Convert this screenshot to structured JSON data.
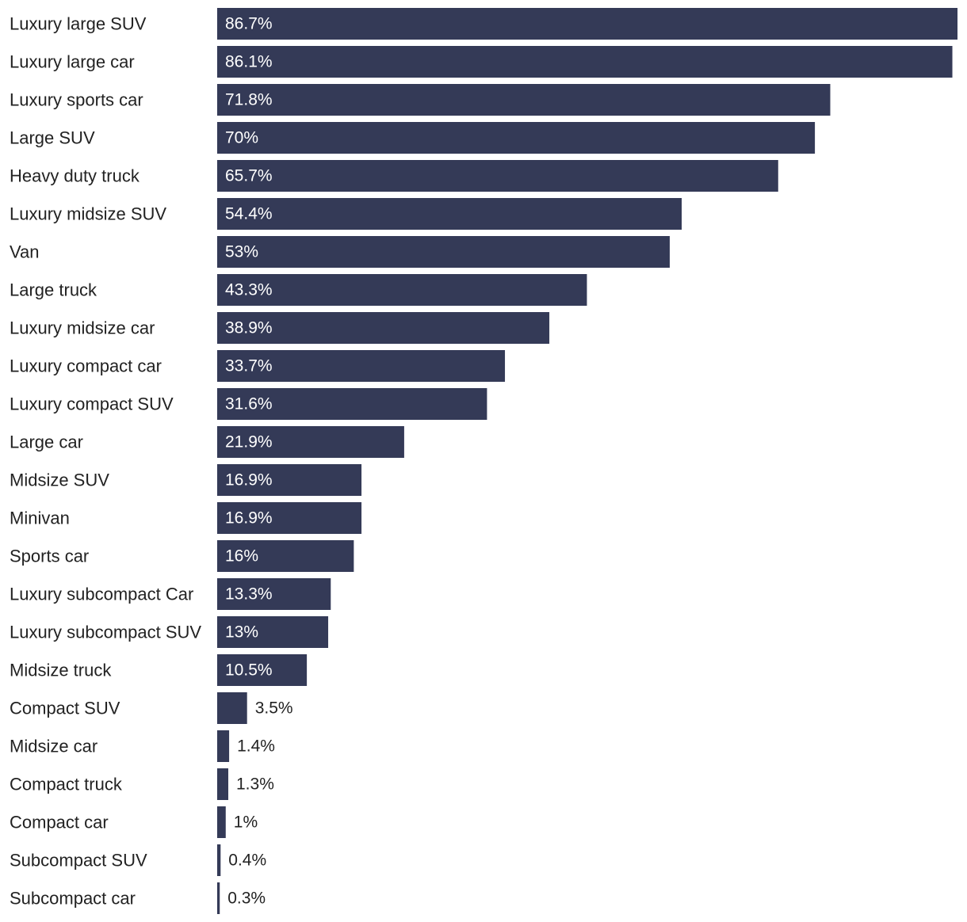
{
  "chart_data": {
    "type": "bar",
    "orientation": "horizontal",
    "title": "",
    "xlabel": "",
    "ylabel": "",
    "xlim": [
      0,
      86.7
    ],
    "grid": false,
    "legend": "none",
    "value_suffix": "%",
    "categories": [
      "Luxury large SUV",
      "Luxury large car",
      "Luxury sports car",
      "Large SUV",
      "Heavy duty truck",
      "Luxury midsize SUV",
      "Van",
      "Large truck",
      "Luxury midsize car",
      "Luxury compact car",
      "Luxury compact SUV",
      "Large car",
      "Midsize SUV",
      "Minivan",
      "Sports car",
      "Luxury subcompact Car",
      "Luxury subcompact SUV",
      "Midsize truck",
      "Compact SUV",
      "Midsize car",
      "Compact truck",
      "Compact car",
      "Subcompact SUV",
      "Subcompact car"
    ],
    "values": [
      86.7,
      86.1,
      71.8,
      70,
      65.7,
      54.4,
      53,
      43.3,
      38.9,
      33.7,
      31.6,
      21.9,
      16.9,
      16.9,
      16,
      13.3,
      13,
      10.5,
      3.5,
      1.4,
      1.3,
      1,
      0.4,
      0.3
    ],
    "value_labels": [
      "86.7%",
      "86.1%",
      "71.8%",
      "70%",
      "65.7%",
      "54.4%",
      "53%",
      "43.3%",
      "38.9%",
      "33.7%",
      "31.6%",
      "21.9%",
      "16.9%",
      "16.9%",
      "16%",
      "13.3%",
      "13%",
      "10.5%",
      "3.5%",
      "1.4%",
      "1.3%",
      "1%",
      "0.4%",
      "0.3%"
    ],
    "colors": {
      "bar": "#343a57",
      "label_inside": "#ffffff",
      "label_outside": "#222222",
      "category_text": "#222222"
    }
  }
}
